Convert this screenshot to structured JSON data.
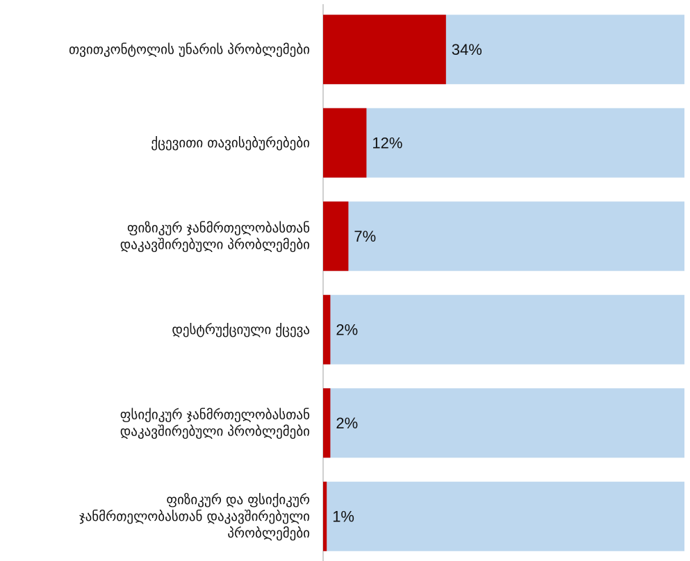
{
  "chart_data": {
    "type": "bar",
    "orientation": "horizontal",
    "stacked": true,
    "categories": [
      [
        "თვითკონტოლის უნარის პრობლემები"
      ],
      [
        "ქცევითი თავისებურებები"
      ],
      [
        "ფიზიკურ ჯანმრთელობასთან",
        "დაკავშირებული პრობლემები"
      ],
      [
        "დესტრუქციული ქცევა"
      ],
      [
        "ფსიქიკურ ჯანმრთელობასთან",
        "დაკავშირებული პრობლემები"
      ],
      [
        "ფიზიკურ და ფსიქიკურ",
        "ჯანმრთელობასთან დაკავშირებული",
        "პრობლემები"
      ]
    ],
    "values": [
      34,
      12,
      7,
      2,
      2,
      1
    ],
    "value_labels": [
      "34%",
      "12%",
      "7%",
      "2%",
      "2%",
      "1%"
    ],
    "xlim": [
      0,
      100
    ],
    "grid": false,
    "legend": "none",
    "colors": {
      "value": "#C00000",
      "remainder": "#BDD7EE",
      "axis": "#BFBFBF"
    }
  }
}
